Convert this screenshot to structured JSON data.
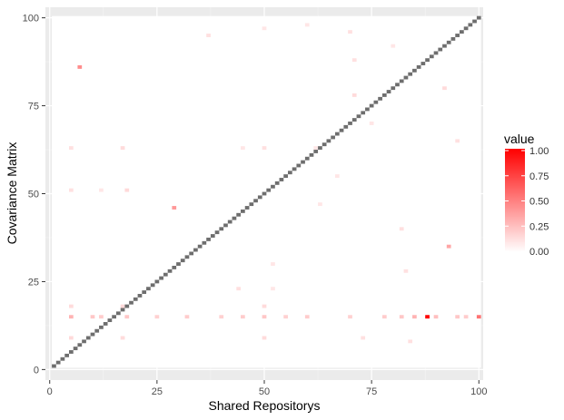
{
  "chart_data": {
    "type": "heatmap",
    "title": "",
    "xlabel": "Shared Repositorys",
    "ylabel": "Covariance Matrix",
    "xlim": [
      -1,
      101
    ],
    "ylim": [
      -3,
      103
    ],
    "x_ticks": [
      0,
      25,
      50,
      75,
      100
    ],
    "y_ticks": [
      0,
      25,
      50,
      75,
      100
    ],
    "x_tick_labels": [
      "0",
      "25",
      "50",
      "75",
      "100"
    ],
    "y_tick_labels": [
      "0",
      "25",
      "50",
      "75",
      "100"
    ],
    "grid": true,
    "panel_background": "#ebebeb",
    "legend": {
      "title": "value",
      "position": "right",
      "breaks": [
        1.0,
        0.75,
        0.5,
        0.25,
        0.0
      ],
      "labels": [
        "1.00",
        "0.75",
        "0.50",
        "0.25",
        "0.00"
      ],
      "low_color": "#ffffff",
      "high_color": "#ff0000"
    },
    "diagonal": {
      "from": 1,
      "to": 100,
      "color": "#6e6e6e",
      "note": "diagonal cells drawn grey (NA)"
    },
    "cells": [
      [
        88,
        15,
        1.0
      ],
      [
        93,
        35,
        0.35
      ],
      [
        7,
        86,
        0.45
      ],
      [
        29,
        46,
        0.4
      ],
      [
        100,
        15,
        0.55
      ],
      [
        5,
        15,
        0.3
      ],
      [
        10,
        15,
        0.22
      ],
      [
        12,
        15,
        0.2
      ],
      [
        18,
        15,
        0.22
      ],
      [
        25,
        15,
        0.18
      ],
      [
        32,
        15,
        0.2
      ],
      [
        40,
        15,
        0.18
      ],
      [
        45,
        15,
        0.2
      ],
      [
        50,
        15,
        0.22
      ],
      [
        55,
        15,
        0.18
      ],
      [
        60,
        15,
        0.2
      ],
      [
        70,
        15,
        0.18
      ],
      [
        78,
        15,
        0.2
      ],
      [
        82,
        15,
        0.22
      ],
      [
        85,
        15,
        0.3
      ],
      [
        90,
        15,
        0.25
      ],
      [
        95,
        15,
        0.22
      ],
      [
        97,
        15,
        0.2
      ],
      [
        5,
        9,
        0.15
      ],
      [
        17,
        9,
        0.14
      ],
      [
        50,
        9,
        0.14
      ],
      [
        73,
        9,
        0.12
      ],
      [
        5,
        18,
        0.14
      ],
      [
        17,
        18,
        0.15
      ],
      [
        50,
        18,
        0.14
      ],
      [
        18,
        51,
        0.15
      ],
      [
        5,
        51,
        0.12
      ],
      [
        12,
        51,
        0.1
      ],
      [
        17,
        63,
        0.14
      ],
      [
        50,
        63,
        0.12
      ],
      [
        5,
        63,
        0.12
      ],
      [
        45,
        63,
        0.1
      ],
      [
        62,
        63,
        0.1
      ],
      [
        44,
        23,
        0.12
      ],
      [
        52,
        23,
        0.1
      ],
      [
        52,
        30,
        0.1
      ],
      [
        71,
        78,
        0.14
      ],
      [
        71,
        88,
        0.12
      ],
      [
        92,
        80,
        0.14
      ],
      [
        95,
        65,
        0.12
      ],
      [
        82,
        40,
        0.12
      ],
      [
        83,
        28,
        0.12
      ],
      [
        84,
        8,
        0.12
      ],
      [
        63,
        47,
        0.1
      ],
      [
        67,
        55,
        0.1
      ],
      [
        75,
        70,
        0.1
      ],
      [
        80,
        92,
        0.1
      ],
      [
        37,
        95,
        0.12
      ],
      [
        50,
        97,
        0.1
      ],
      [
        60,
        98,
        0.1
      ],
      [
        70,
        96,
        0.12
      ]
    ]
  }
}
